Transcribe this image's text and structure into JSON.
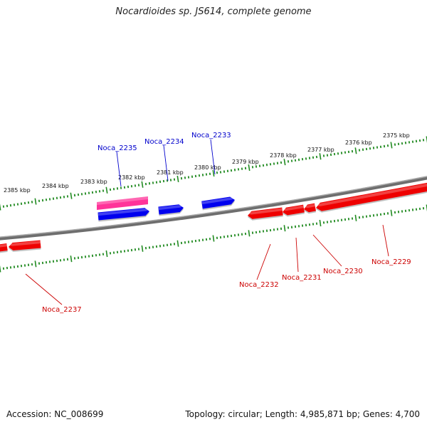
{
  "title": "Nocardioides sp. JS614, complete genome",
  "footer": {
    "accession": "Accession: NC_008699",
    "topology": "Topology: circular; Length: 4,985,871 bp; Genes: 4,700"
  },
  "colors": {
    "backbone": "#808080",
    "ticks": "#228b22",
    "forward_gene": "#0000ee",
    "reverse_gene": "#ee0000",
    "highlight_gene": "#ff3399",
    "forward_label": "#0000cc",
    "reverse_label": "#cc0000"
  },
  "scale": {
    "unit": "kbp",
    "labels": [
      "2375 kbp",
      "2376 kbp",
      "2377 kbp",
      "2378 kbp",
      "2379 kbp",
      "2380 kbp",
      "2381 kbp",
      "2382 kbp",
      "2383 kbp",
      "2384 kbp",
      "2385 kbp"
    ]
  },
  "genes": {
    "forward": [
      "Noca_2235",
      "Noca_2234",
      "Noca_2233"
    ],
    "reverse": [
      "Noca_2237",
      "Noca_2232",
      "Noca_2231",
      "Noca_2230",
      "Noca_2229"
    ]
  }
}
